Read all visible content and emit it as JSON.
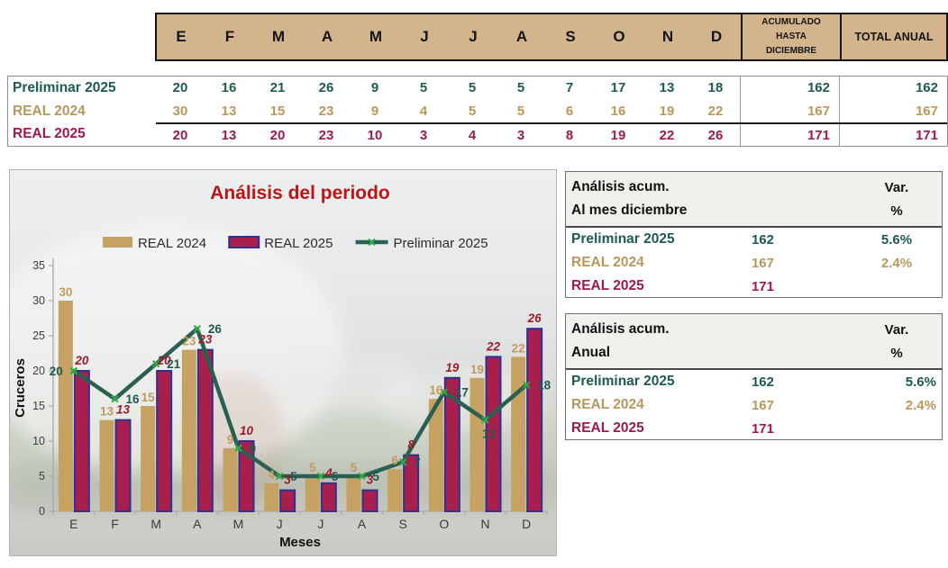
{
  "monthly_table": {
    "month_headers": [
      "E",
      "F",
      "M",
      "A",
      "M",
      "J",
      "J",
      "A",
      "S",
      "O",
      "N",
      "D"
    ],
    "acumulado_header": "ACUMULADO HASTA DICIEMBRE",
    "total_header": "TOTAL ANUAL",
    "rows": [
      {
        "label": "Preliminar 2025",
        "color": "#1d5a50",
        "values": [
          "20",
          "16",
          "21",
          "26",
          "9",
          "5",
          "5",
          "5",
          "7",
          "17",
          "13",
          "18"
        ],
        "acumulado": "162",
        "total": "162"
      },
      {
        "label": "REAL 2024",
        "color": "#b7985c",
        "values": [
          "30",
          "13",
          "15",
          "23",
          "9",
          "4",
          "5",
          "5",
          "6",
          "16",
          "19",
          "22"
        ],
        "acumulado": "167",
        "total": "167"
      },
      {
        "label": "REAL 2025",
        "color": "#9d1a4e",
        "values": [
          "20",
          "13",
          "20",
          "23",
          "10",
          "3",
          "4",
          "3",
          "8",
          "19",
          "22",
          "26"
        ],
        "acumulado": "171",
        "total": "171"
      }
    ]
  },
  "chart_data": {
    "type": "bar",
    "title": "Análisis del periodo",
    "xlabel": "Meses",
    "ylabel": "Cruceros",
    "categories": [
      "E",
      "F",
      "M",
      "A",
      "M",
      "J",
      "J",
      "A",
      "S",
      "O",
      "N",
      "D"
    ],
    "series": [
      {
        "name": "REAL 2024",
        "kind": "bar",
        "color": "#c5a261",
        "label_color": "#c09a5e",
        "values": [
          30,
          13,
          15,
          23,
          9,
          4,
          5,
          5,
          6,
          16,
          19,
          22
        ]
      },
      {
        "name": "REAL 2025",
        "kind": "bar",
        "color": "#a81e4d",
        "border_color": "#2e3192",
        "label_color": "#9e1b2a",
        "values": [
          20,
          13,
          20,
          23,
          10,
          3,
          4,
          3,
          8,
          19,
          22,
          26
        ]
      },
      {
        "name": "Preliminar 2025",
        "kind": "line",
        "color": "#2a5f51",
        "marker_color": "#2fae41",
        "label_color": "#1d5a50",
        "values": [
          20,
          16,
          21,
          26,
          9,
          5,
          5,
          5,
          7,
          17,
          13,
          18
        ]
      }
    ],
    "ylim": [
      0,
      35
    ],
    "ytick_step": 5,
    "grid": false,
    "legend_position": "top"
  },
  "summary_tables": [
    {
      "title_line1": "Análisis acum.",
      "title_line2": "Al mes diciembre",
      "var_header": "Var.",
      "pct_header": "%",
      "rows": [
        {
          "label": "Preliminar 2025",
          "color": "#1d5a50",
          "value": "162",
          "variation": "5.6%"
        },
        {
          "label": "REAL 2024",
          "color": "#b7985c",
          "value": "167",
          "variation": "2.4%"
        },
        {
          "label": "REAL 2025",
          "color": "#9d1a4e",
          "value": "171",
          "variation": ""
        }
      ]
    },
    {
      "title_line1": "Análisis acum.",
      "title_line2": "Anual",
      "var_header": "Var.",
      "pct_header": "%",
      "rows": [
        {
          "label": "Preliminar 2025",
          "color": "#1d5a50",
          "value": "162",
          "variation": "5.6%"
        },
        {
          "label": "REAL 2024",
          "color": "#b7985c",
          "value": "167",
          "variation": "2.4%"
        },
        {
          "label": "REAL 2025",
          "color": "#9d1a4e",
          "value": "171",
          "variation": ""
        }
      ]
    }
  ],
  "colors": {
    "header_background": "#d2b58d",
    "title_red": "#be1414",
    "teal": "#1d5a50",
    "tan": "#b7985c",
    "maroon": "#9d1a4e",
    "bar_border_navy": "#2e3192",
    "marker_green": "#2fae41"
  }
}
